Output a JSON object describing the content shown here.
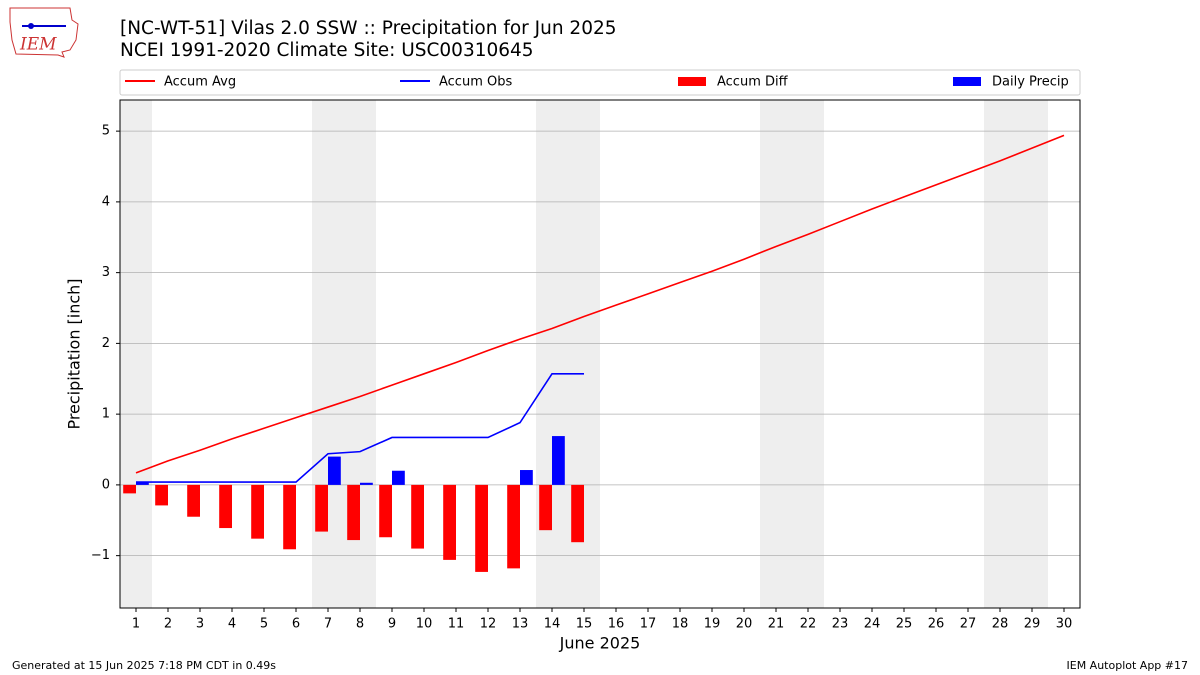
{
  "chart_data": {
    "type": "combo",
    "title": "[NC-WT-51] Vilas 2.0 SSW :: Precipitation for Jun 2025",
    "subtitle": "NCEI 1991-2020 Climate Site: USC00310645",
    "logo_text": "IEM",
    "footer_left": "Generated at 15 Jun 2025 7:18 PM CDT in 0.49s",
    "footer_right": "IEM Autoplot App #17",
    "x_label": "June 2025",
    "y_label": "Precipitation [inch]",
    "x": [
      1,
      2,
      3,
      4,
      5,
      6,
      7,
      8,
      9,
      10,
      11,
      12,
      13,
      14,
      15,
      16,
      17,
      18,
      19,
      20,
      21,
      22,
      23,
      24,
      25,
      26,
      27,
      28,
      29,
      30
    ],
    "xlim": [
      0.5,
      30.5
    ],
    "ylim": [
      -1.74,
      5.44
    ],
    "yticks": [
      {
        "value": -1,
        "label": "−1"
      },
      0,
      1,
      2,
      3,
      4,
      5
    ],
    "grid": true,
    "shaded_days": [
      1,
      7,
      8,
      14,
      15,
      21,
      22,
      28,
      29
    ],
    "series": [
      {
        "name": "Accum Avg",
        "type": "line",
        "color": "#ff0000",
        "values": [
          0.17,
          0.34,
          0.49,
          0.65,
          0.8,
          0.95,
          1.1,
          1.25,
          1.41,
          1.57,
          1.73,
          1.9,
          2.06,
          2.21,
          2.38,
          2.54,
          2.7,
          2.86,
          3.02,
          3.19,
          3.37,
          3.54,
          3.72,
          3.9,
          4.07,
          4.24,
          4.41,
          4.58,
          4.76,
          4.94
        ]
      },
      {
        "name": "Accum Obs",
        "type": "line",
        "color": "#0000ff",
        "values": [
          0.04,
          0.04,
          0.04,
          0.04,
          0.04,
          0.04,
          0.44,
          0.47,
          0.67,
          0.67,
          0.67,
          0.67,
          0.88,
          1.57,
          1.57,
          null,
          null,
          null,
          null,
          null,
          null,
          null,
          null,
          null,
          null,
          null,
          null,
          null,
          null,
          null
        ]
      },
      {
        "name": "Accum Diff",
        "type": "bar",
        "color": "#ff0000",
        "values": [
          -0.12,
          -0.29,
          -0.45,
          -0.61,
          -0.76,
          -0.91,
          -0.66,
          -0.78,
          -0.74,
          -0.9,
          -1.06,
          -1.23,
          -1.18,
          -0.64,
          -0.81,
          null,
          null,
          null,
          null,
          null,
          null,
          null,
          null,
          null,
          null,
          null,
          null,
          null,
          null,
          null
        ]
      },
      {
        "name": "Daily Precip",
        "type": "bar",
        "color": "#0000ff",
        "values": [
          0.04,
          0,
          0,
          0,
          0,
          0,
          0.4,
          0.03,
          0.2,
          0,
          0,
          0,
          0.21,
          0.69,
          0,
          null,
          null,
          null,
          null,
          null,
          null,
          null,
          null,
          null,
          null,
          null,
          null,
          null,
          null,
          null
        ]
      }
    ]
  }
}
